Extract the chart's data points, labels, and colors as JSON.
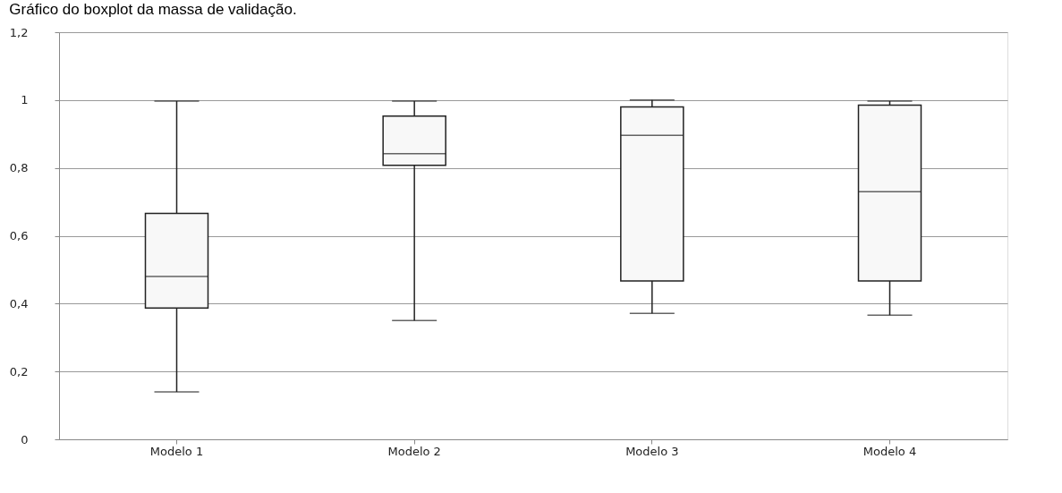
{
  "chart_data": {
    "type": "box",
    "title": "Gráfico do boxplot da massa de validação.",
    "categories": [
      "Modelo 1",
      "Modelo 2",
      "Modelo 3",
      "Modelo 4"
    ],
    "boxes": [
      {
        "low": 0.14,
        "q1": 0.387,
        "median": 0.48,
        "q3": 0.666,
        "high": 0.997
      },
      {
        "low": 0.35,
        "q1": 0.808,
        "median": 0.842,
        "q3": 0.953,
        "high": 0.997
      },
      {
        "low": 0.371,
        "q1": 0.467,
        "median": 0.896,
        "q3": 0.98,
        "high": 1.0
      },
      {
        "low": 0.366,
        "q1": 0.467,
        "median": 0.73,
        "q3": 0.985,
        "high": 0.997
      }
    ],
    "color": "#f8f8f8",
    "ylim": [
      0,
      1.2
    ],
    "yticks": [
      {
        "value": 0,
        "label": "0"
      },
      {
        "value": 0.2,
        "label": "0,2"
      },
      {
        "value": 0.4,
        "label": "0,4"
      },
      {
        "value": 0.6,
        "label": "0,6"
      },
      {
        "value": 0.8,
        "label": "0,8"
      },
      {
        "value": 1,
        "label": "1"
      },
      {
        "value": 1.2,
        "label": "1,2"
      }
    ],
    "grid": "y"
  }
}
